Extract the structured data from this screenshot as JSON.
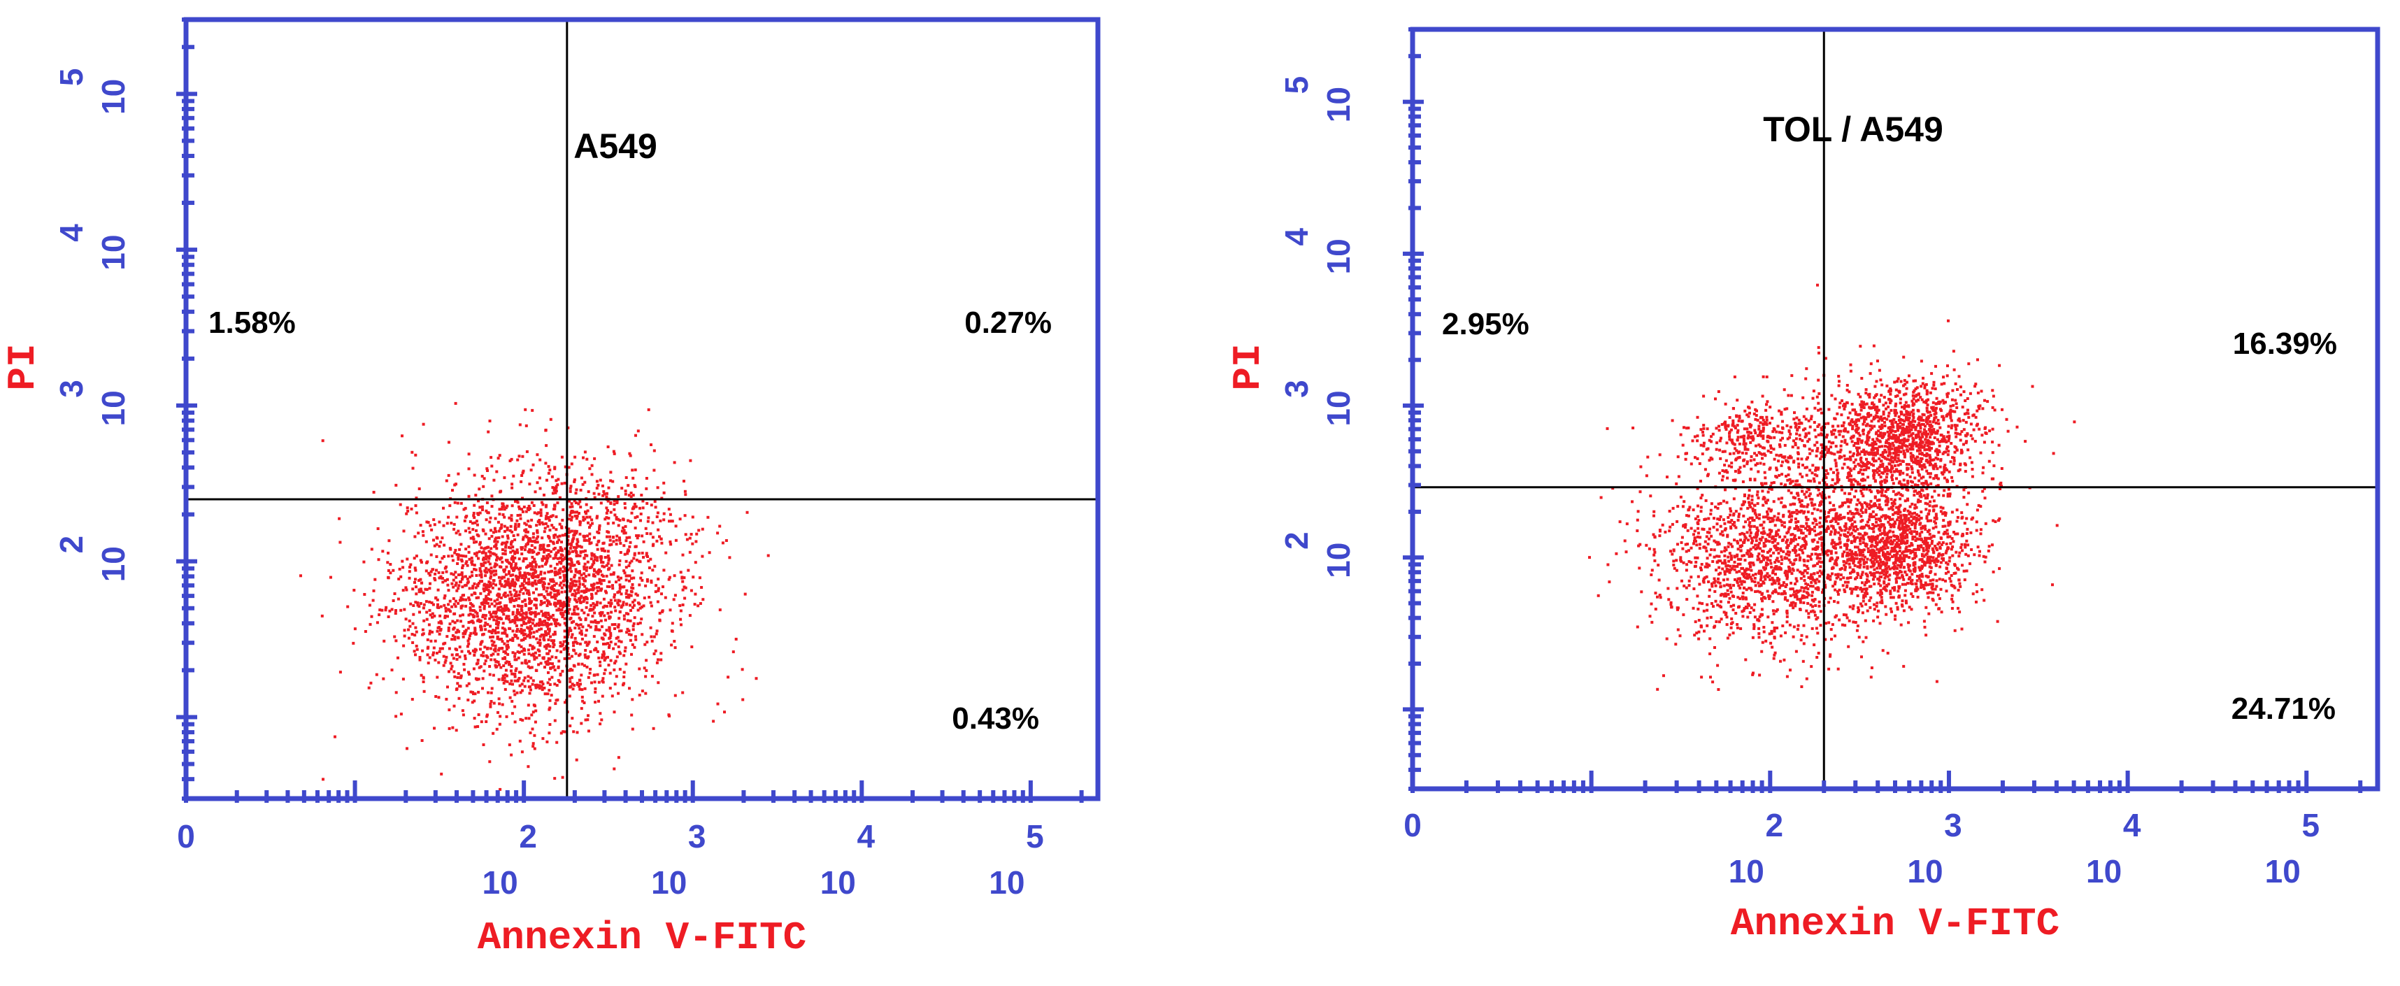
{
  "chart_data": [
    {
      "type": "scatter",
      "title": "A549",
      "xlabel": "Annexin V-FITC",
      "ylabel": "PI",
      "x_scale": "log",
      "y_scale": "log",
      "xlim": [
        1,
        250000
      ],
      "ylim": [
        3,
        300000
      ],
      "x_tick_labels": [
        {
          "base": "",
          "exp": "0",
          "value": 1
        },
        {
          "base": "10",
          "exp": "2",
          "value": 100
        },
        {
          "base": "10",
          "exp": "3",
          "value": 1000
        },
        {
          "base": "10",
          "exp": "4",
          "value": 10000
        },
        {
          "base": "10",
          "exp": "5",
          "value": 100000
        }
      ],
      "y_tick_labels": [
        {
          "base": "10",
          "exp": "2",
          "value": 100
        },
        {
          "base": "10",
          "exp": "3",
          "value": 1000
        },
        {
          "base": "10",
          "exp": "4",
          "value": 10000
        },
        {
          "base": "10",
          "exp": "5",
          "value": 100000
        }
      ],
      "gate": {
        "x": 180,
        "y": 250
      },
      "quadrants": {
        "upper_left": "1.58%",
        "upper_right": "0.27%",
        "lower_left": "",
        "lower_right": "0.43%"
      },
      "clusters": [
        {
          "x": 100,
          "y": 60,
          "spread_x": 0.38,
          "spread_y": 0.38,
          "count": 2600
        },
        {
          "x": 320,
          "y": 110,
          "spread_x": 0.28,
          "spread_y": 0.32,
          "count": 450
        }
      ],
      "point_color": "#ee1c24",
      "axis_color": "#3f48cc",
      "label_color": "#3f48cc",
      "title_color": "#ee1c24"
    },
    {
      "type": "scatter",
      "title": "TOL / A549",
      "xlabel": "Annexin V-FITC",
      "ylabel": "PI",
      "x_scale": "log",
      "y_scale": "log",
      "xlim": [
        1,
        250000
      ],
      "ylim": [
        3,
        300000
      ],
      "x_tick_labels": [
        {
          "base": "",
          "exp": "0",
          "value": 1
        },
        {
          "base": "10",
          "exp": "2",
          "value": 100
        },
        {
          "base": "10",
          "exp": "3",
          "value": 1000
        },
        {
          "base": "10",
          "exp": "4",
          "value": 10000
        },
        {
          "base": "10",
          "exp": "5",
          "value": 100000
        }
      ],
      "y_tick_labels": [
        {
          "base": "10",
          "exp": "2",
          "value": 100
        },
        {
          "base": "10",
          "exp": "3",
          "value": 1000
        },
        {
          "base": "10",
          "exp": "4",
          "value": 10000
        },
        {
          "base": "10",
          "exp": "5",
          "value": 100000
        }
      ],
      "gate": {
        "x": 200,
        "y": 290
      },
      "quadrants": {
        "upper_left": "2.95%",
        "upper_right": "16.39%",
        "lower_left": "",
        "lower_right": "24.71%"
      },
      "clusters": [
        {
          "x": 100,
          "y": 100,
          "spread_x": 0.35,
          "spread_y": 0.3,
          "count": 1500
        },
        {
          "x": 90,
          "y": 650,
          "spread_x": 0.2,
          "spread_y": 0.12,
          "count": 300
        },
        {
          "x": 550,
          "y": 650,
          "spread_x": 0.22,
          "spread_y": 0.18,
          "count": 1100
        },
        {
          "x": 520,
          "y": 120,
          "spread_x": 0.2,
          "spread_y": 0.2,
          "count": 1050
        },
        {
          "x": 300,
          "y": 350,
          "spread_x": 0.35,
          "spread_y": 0.35,
          "count": 500
        }
      ],
      "point_color": "#ee1c24",
      "axis_color": "#3f48cc",
      "label_color": "#3f48cc",
      "title_color": "#ee1c24"
    }
  ]
}
